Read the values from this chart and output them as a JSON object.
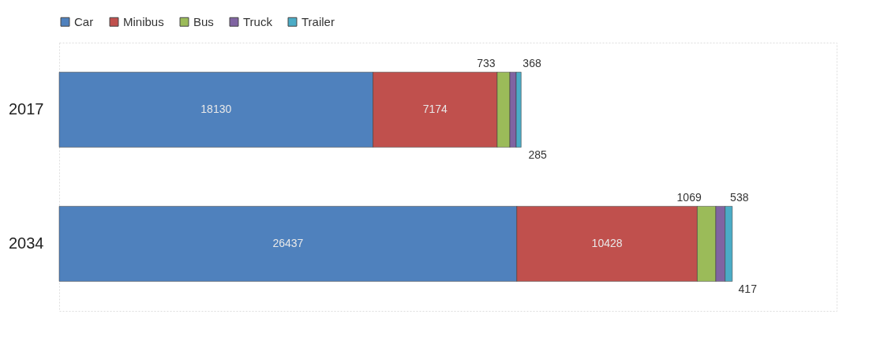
{
  "chart_data": {
    "type": "bar",
    "orientation": "horizontal",
    "stacked": true,
    "categories": [
      "2017",
      "2034"
    ],
    "series": [
      {
        "name": "Car",
        "color": "#4f81bd",
        "values": [
          18130,
          26437
        ]
      },
      {
        "name": "Minibus",
        "color": "#c0504d",
        "values": [
          7174,
          10428
        ]
      },
      {
        "name": "Bus",
        "color": "#9bbb59",
        "values": [
          733,
          1069
        ]
      },
      {
        "name": "Truck",
        "color": "#8064a2",
        "values": [
          368,
          538
        ]
      },
      {
        "name": "Trailer",
        "color": "#4bacc6",
        "values": [
          285,
          417
        ]
      }
    ],
    "data_labels": true,
    "legend": "top"
  }
}
